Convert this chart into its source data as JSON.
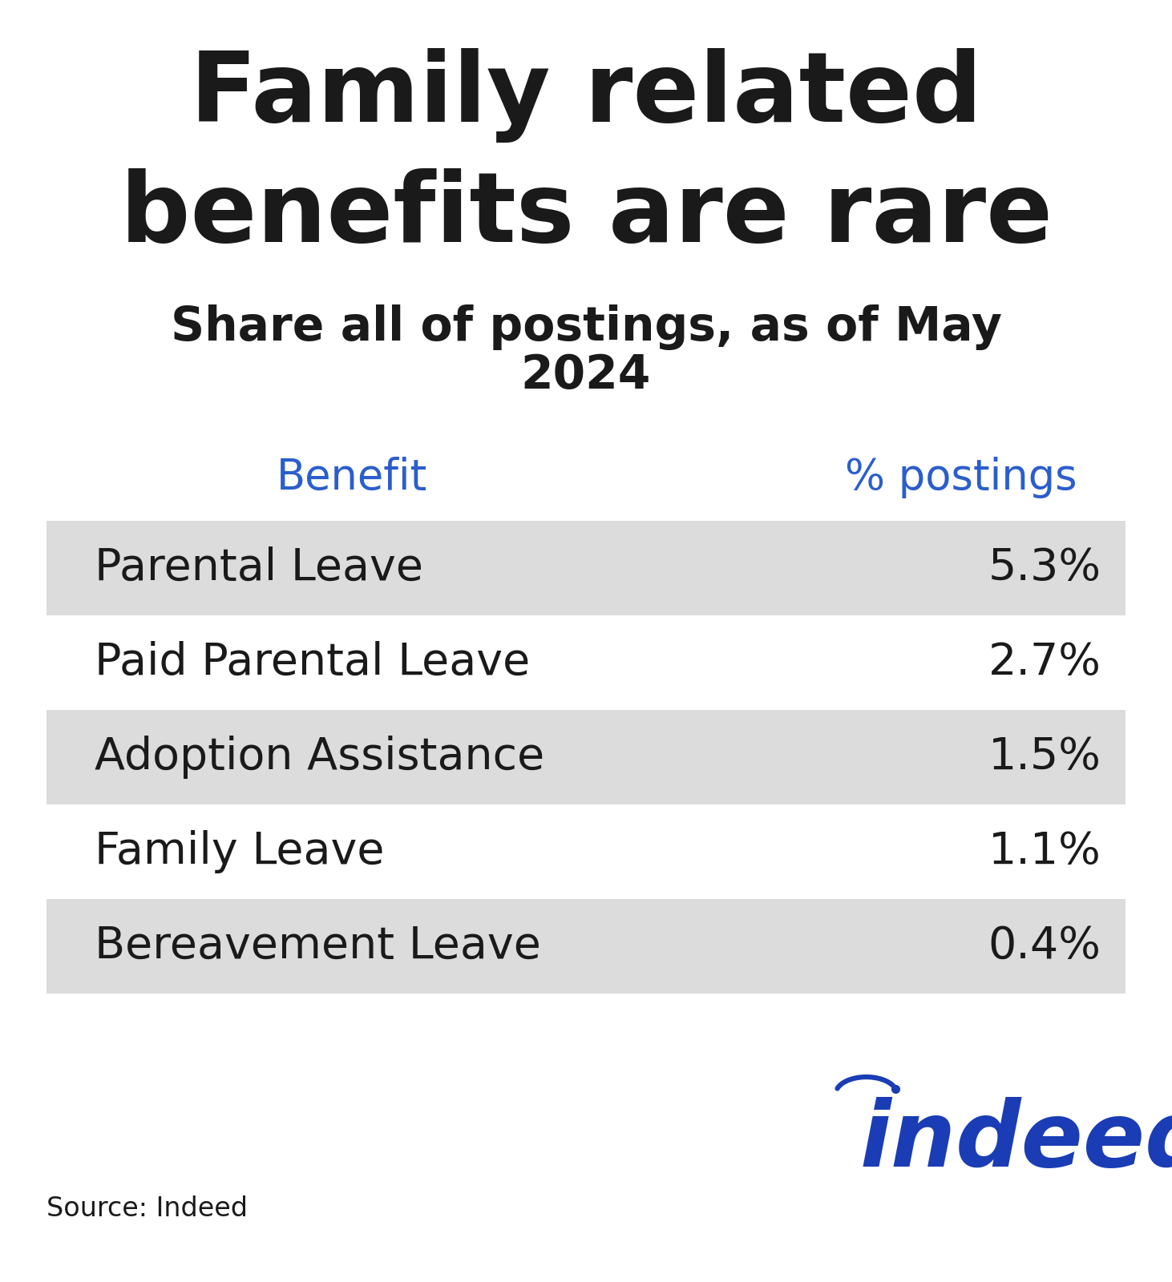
{
  "title_line1": "Family related",
  "title_line2": "benefits are rare",
  "subtitle": "Share all of postings, as of May\n2024",
  "col_header_benefit": "Benefit",
  "col_header_pct": "% postings",
  "header_color": "#2B5ECC",
  "title_color": "#1a1a1a",
  "subtitle_color": "#1a1a1a",
  "rows": [
    {
      "benefit": "Parental Leave",
      "pct": "5.3%",
      "shaded": true
    },
    {
      "benefit": "Paid Parental Leave",
      "pct": "2.7%",
      "shaded": false
    },
    {
      "benefit": "Adoption Assistance",
      "pct": "1.5%",
      "shaded": true
    },
    {
      "benefit": "Family Leave",
      "pct": "1.1%",
      "shaded": false
    },
    {
      "benefit": "Bereavement Leave",
      "pct": "0.4%",
      "shaded": true
    }
  ],
  "row_shaded_color": "#DCDCDC",
  "row_white_color": "#FFFFFF",
  "text_color": "#1a1a1a",
  "source_text": "Source: Indeed",
  "background_color": "#FFFFFF",
  "indeed_blue": "#1A3DB5"
}
